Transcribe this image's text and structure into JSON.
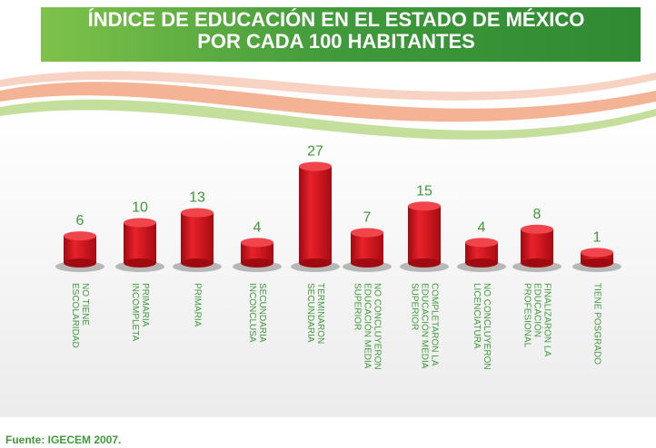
{
  "chart_data": {
    "type": "bar",
    "title": "ÍNDICE DE EDUCACIÓN EN EL ESTADO DE MÉXICO POR CADA 100 HABITANTES",
    "categories": [
      "NO TIENE ESCOLARIDAD",
      "PRIMARIA INCOMPLETA",
      "PRIMARIA",
      "SECUNDARIA INCONCLUSA",
      "TERMINARON SECUNDARIA",
      "NO CONCLUYERON EDUCACIÓN MEDIA SUPERIOR",
      "COMPLETARON LA EDUCACIÓN MEDIA SUPERIOR",
      "NO CONCLUYERON LICENCIATURA",
      "FINALIZARON LA EDUCACIÓN PROFESIONAL",
      "TIENE POSGRADO"
    ],
    "values": [
      6,
      10,
      13,
      4,
      27,
      7,
      15,
      4,
      8,
      1
    ],
    "color": "#d8121b",
    "label_color": "#3f9a3a",
    "source": "Fuente: IGECEM 2007."
  }
}
